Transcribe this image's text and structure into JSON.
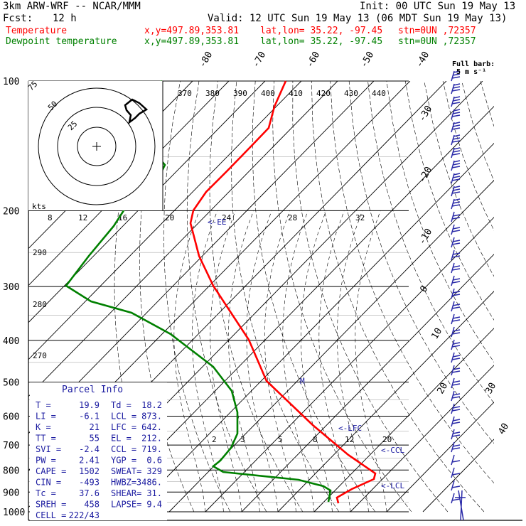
{
  "header": {
    "model": "3km ARW-WRF -- NCAR/MMM",
    "init": "Init: 00 UTC Sun 19 May 13",
    "fcst_label": "Fcst:",
    "fcst_value": "12 h",
    "valid": "Valid: 12 UTC Sun 19 May 13 (06 MDT Sun 19 May 13)",
    "rows": [
      {
        "name": "Temperature",
        "xy": "x,y=497.89,353.81",
        "latlon": "lat,lon= 35.22, -97.45",
        "stn": "stn=0UN ,72357",
        "color": "#ff0000"
      },
      {
        "name": "Dewpoint temperature",
        "xy": "x,y=497.89,353.81",
        "latlon": "lat,lon= 35.22, -97.45",
        "stn": "stn=0UN ,72357",
        "color": "#008000"
      }
    ]
  },
  "barb_legend": {
    "line1": "Full barb:",
    "line2": "5 m s⁻¹"
  },
  "chart_data": {
    "type": "line",
    "title": "",
    "ylabel_ticks": [
      "100",
      "200",
      "300",
      "400",
      "500",
      "600",
      "700",
      "800",
      "900",
      "1000"
    ],
    "pressure_levels": [
      100,
      200,
      300,
      400,
      500,
      600,
      700,
      800,
      900,
      1000
    ],
    "isotherm_labels": [
      "-80",
      "-70",
      "-60",
      "-50",
      "-40",
      "-30",
      "-20",
      "-10",
      "0",
      "10",
      "20",
      "30",
      "40"
    ],
    "theta_labels": [
      "370",
      "380",
      "390",
      "400",
      "410",
      "420",
      "430",
      "440"
    ],
    "theta_side_labels": [
      "290",
      "280",
      "270"
    ],
    "mixing_ratio_upper": [
      "8",
      "12",
      "16",
      "20",
      "24",
      "28",
      "32"
    ],
    "mixing_ratio_lower": [
      "2",
      "3",
      "5",
      "8",
      "12",
      "20"
    ],
    "hodograph": {
      "unit": "kts",
      "ring_labels": [
        "25",
        "50",
        "75"
      ]
    },
    "markers": {
      "ee": "<-EE",
      "lfc": "<-LFC",
      "ccl": "<-CCL",
      "lcl": "<-LCL",
      "m": "M"
    },
    "series": [
      {
        "name": "Temperature",
        "color": "#ff0000",
        "p": [
          100,
          130,
          150,
          200,
          250,
          300,
          400,
          500,
          600,
          700,
          800,
          830,
          850,
          880,
          920
        ],
        "t": [
          -67,
          -62,
          -52,
          -46,
          -41,
          -34,
          -19,
          -7,
          2,
          12,
          20,
          21,
          20,
          19,
          18
        ]
      },
      {
        "name": "Dewpoint temperature",
        "color": "#008000",
        "p": [
          100,
          110,
          130,
          150,
          180,
          200,
          300,
          330,
          400,
          500,
          600,
          700,
          750,
          800,
          850,
          870,
          900,
          920
        ],
        "t": [
          -70,
          -75,
          -76,
          -77,
          -73,
          -72,
          -71,
          -58,
          -37,
          -17,
          -9,
          -4,
          -6,
          -10,
          8,
          15,
          17,
          16
        ]
      }
    ]
  },
  "parcel_info": {
    "title": "Parcel Info",
    "rows": [
      [
        "T  =",
        "19.9",
        "Td =",
        "18.2"
      ],
      [
        "LI =",
        "-6.1",
        "LCL =",
        "873."
      ],
      [
        "K  =",
        "21",
        "LFC =",
        "642."
      ],
      [
        "TT =",
        "55",
        "EL =",
        "212."
      ],
      [
        "SVI =",
        "-2.4",
        "CCL =",
        "719."
      ],
      [
        "PW =",
        "2.41",
        "YGP =",
        "0.6"
      ],
      [
        "CAPE =",
        "1502",
        "SWEAT=",
        "329"
      ],
      [
        "CIN =",
        "-493",
        "HWBZ=",
        "3486."
      ],
      [
        "Tc =",
        "37.6",
        "SHEAR=",
        "31."
      ],
      [
        "SREH =",
        "458",
        "LAPSE=",
        "9.4"
      ],
      [
        "CELL =",
        "222/43",
        "",
        ""
      ]
    ]
  }
}
